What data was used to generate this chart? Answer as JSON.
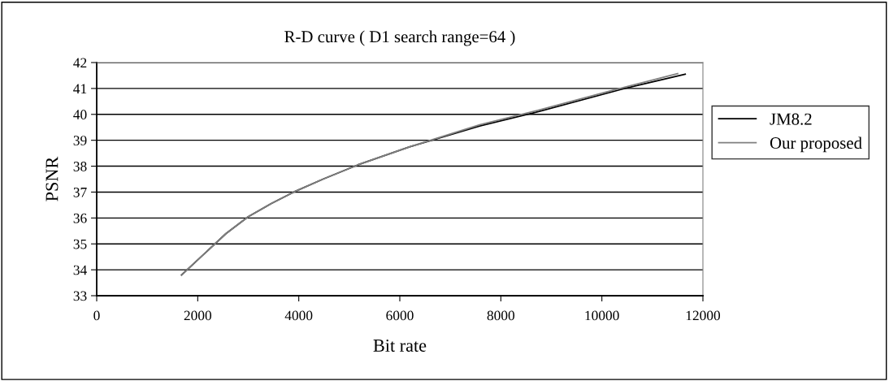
{
  "chart_data": {
    "type": "line",
    "title": "R-D curve ( D1 search range=64 )",
    "xlabel": "Bit rate",
    "ylabel": "PSNR",
    "series": [
      {
        "name": "JM8.2",
        "color": "#000000",
        "x": [
          1680,
          2560,
          3000,
          3450,
          3900,
          4480,
          5170,
          6200,
          7580,
          8730,
          10450,
          11650
        ],
        "values": [
          33.8,
          35.4,
          36.05,
          36.55,
          37.0,
          37.5,
          38.05,
          38.75,
          39.55,
          40.1,
          41.0,
          41.55
        ]
      },
      {
        "name": "Our proposed",
        "color": "#808080",
        "x": [
          1680,
          2560,
          3000,
          3450,
          3900,
          4480,
          5170,
          6200,
          7580,
          8730,
          10450,
          11500
        ],
        "values": [
          33.8,
          35.4,
          36.05,
          36.55,
          37.0,
          37.5,
          38.05,
          38.75,
          39.6,
          40.15,
          41.05,
          41.57
        ]
      }
    ],
    "xlim": [
      0,
      12000
    ],
    "xticks": [
      0,
      2000,
      4000,
      6000,
      8000,
      10000,
      12000
    ],
    "ylim": [
      33,
      42
    ],
    "yticks": [
      33,
      34,
      35,
      36,
      37,
      38,
      39,
      40,
      41,
      42
    ],
    "grid": "y",
    "legend": "right",
    "marker": "none",
    "line_style": "solid"
  }
}
